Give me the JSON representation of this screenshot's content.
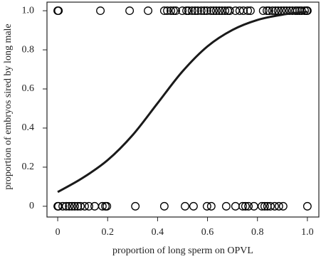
{
  "chart_data": {
    "type": "scatter",
    "xlabel": "proportion of long sperm on OPVL",
    "ylabel": "proportion of embryos sired by long male",
    "xlim": [
      -0.043,
      1.046
    ],
    "ylim": [
      -0.055,
      1.044
    ],
    "xticks": [
      0,
      0.2,
      0.4,
      0.6,
      0.8,
      {
        "value": 1,
        "label": "1.0"
      }
    ],
    "yticks": [
      0,
      0.2,
      0.4,
      0.6,
      0.8,
      {
        "value": 1,
        "label": "1.0"
      }
    ],
    "series": [
      {
        "type": "scatter",
        "color": "#000000",
        "x": [
          0,
          0.003,
          0.171,
          0.288,
          0.362,
          0.427,
          0.439,
          0.453,
          0.464,
          0.473,
          0.499,
          0.516,
          0.524,
          0.538,
          0.55,
          0.561,
          0.575,
          0.587,
          0.598,
          0.613,
          0.624,
          0.635,
          0.647,
          0.658,
          0.67,
          0.681,
          0.689,
          0.712,
          0.729,
          0.744,
          0.761,
          0.772,
          0.823,
          0.838,
          0.846,
          0.86,
          0.872,
          0.883,
          0.895,
          0.906,
          0.917,
          0.929,
          0.94,
          0.952,
          0.96,
          0.969,
          0.977,
          0.989,
          0.997,
          1.0,
          0,
          0.003,
          0.02,
          0.034,
          0.046,
          0.057,
          0.068,
          0.08,
          0.091,
          0.108,
          0.125,
          0.148,
          0.179,
          0.191,
          0.197,
          0.311,
          0.427,
          0.51,
          0.544,
          0.598,
          0.615,
          0.675,
          0.712,
          0.741,
          0.752,
          0.764,
          0.786,
          0.818,
          0.829,
          0.84,
          0.852,
          0.869,
          0.886,
          0.903,
          1.0
        ],
        "values": [
          1,
          1,
          1,
          1,
          1,
          1,
          1,
          1,
          1,
          1,
          1,
          1,
          1,
          1,
          1,
          1,
          1,
          1,
          1,
          1,
          1,
          1,
          1,
          1,
          1,
          1,
          1,
          1,
          1,
          1,
          1,
          1,
          1,
          1,
          1,
          1,
          1,
          1,
          1,
          1,
          1,
          1,
          1,
          1,
          1,
          1,
          1,
          1,
          1,
          1,
          0,
          0,
          0,
          0,
          0,
          0,
          0,
          0,
          0,
          0,
          0,
          0,
          0,
          0,
          0,
          0,
          0,
          0,
          0,
          0,
          0,
          0,
          0,
          0,
          0,
          0,
          0,
          0,
          0,
          0,
          0,
          0,
          0,
          0,
          0
        ]
      },
      {
        "type": "line",
        "color": "#1a1a1a",
        "x": [
          0,
          0.1,
          0.2,
          0.3,
          0.4,
          0.5,
          0.6,
          0.7,
          0.8,
          0.9,
          1.0
        ],
        "values": [
          0.073,
          0.145,
          0.236,
          0.364,
          0.527,
          0.69,
          0.818,
          0.902,
          0.953,
          0.98,
          0.995
        ]
      }
    ]
  }
}
